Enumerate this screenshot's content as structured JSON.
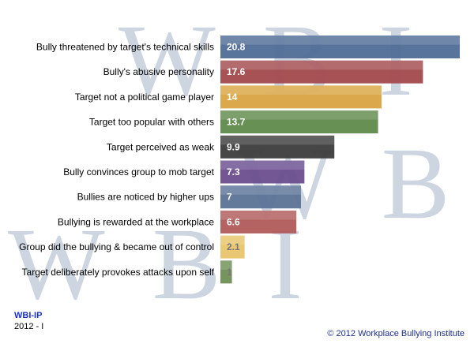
{
  "watermarks": [
    "WBI",
    "WBI",
    "WBI"
  ],
  "org_tag": "WBI-IP",
  "year_tag": "2012 - I",
  "copyright": "© 2012 Workplace Bullying Institute",
  "chart_data": {
    "type": "bar",
    "orientation": "horizontal",
    "title": "",
    "xlabel": "",
    "ylabel": "",
    "grid": false,
    "xlim": [
      0,
      21
    ],
    "categories": [
      "Bully threatened by target's technical skills",
      "Bully's abusive personality",
      "Target not a political game player",
      "Target too popular with others",
      "Target perceived as weak",
      "Bully convinces group to mob target",
      "Bullies are noticed by higher ups",
      "Bullying is rewarded at the workplace",
      "Group did the bullying & became out of control",
      "Target deliberately provokes attacks upon self"
    ],
    "values": [
      20.8,
      17.6,
      14,
      13.7,
      9.9,
      7.3,
      7,
      6.6,
      2.1,
      1
    ],
    "value_labels": [
      "20.8",
      "17.6",
      "14",
      "13.7",
      "9.9",
      "7.3",
      "7",
      "6.6",
      "2.1",
      "1"
    ],
    "colors": [
      "#4f6d96",
      "#a24a4d",
      "#d9a441",
      "#5f8a4b",
      "#3c3c3c",
      "#6a4e8e",
      "#5b7396",
      "#b05a5a",
      "#e8c46c",
      "#6e8e55"
    ]
  }
}
